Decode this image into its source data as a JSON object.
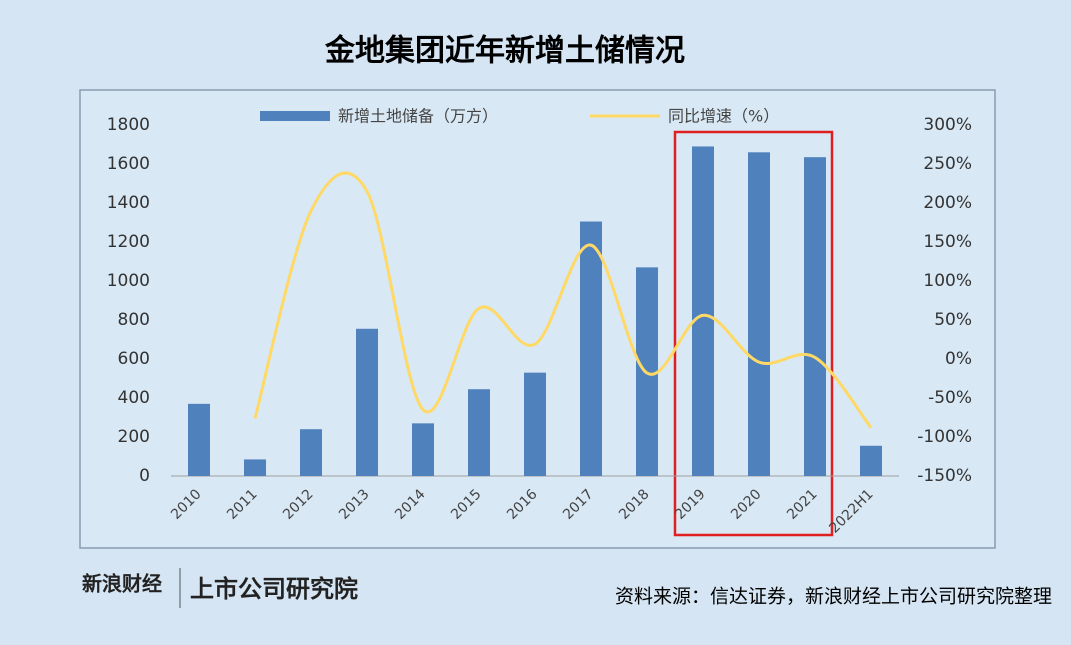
{
  "chart_data": {
    "type": "bar_line",
    "title": "金地集团近年新增土储情况",
    "source": "资料来源：信达证券，新浪财经上市公司研究院整理",
    "logo": {
      "brand": "新浪财经",
      "institute": "上市公司研究院"
    },
    "categories": [
      "2010",
      "2011",
      "2012",
      "2013",
      "2014",
      "2015",
      "2016",
      "2017",
      "2018",
      "2019",
      "2020",
      "2021",
      "2022H1"
    ],
    "series": [
      {
        "name": "新增土地储备（万方）",
        "type": "bar",
        "color": "#4f81bd",
        "values": [
          370,
          85,
          240,
          755,
          270,
          445,
          530,
          1305,
          1070,
          1690,
          1660,
          1635,
          155
        ]
      },
      {
        "name": "同比增速（%）",
        "type": "line",
        "axis": "y2",
        "color": "#ffd966",
        "values": [
          null,
          -76,
          190,
          215,
          -65,
          65,
          19,
          146,
          -18,
          56,
          -4,
          2,
          -88
        ]
      }
    ],
    "ylim": [
      0,
      1800
    ],
    "yticks": [
      0,
      200,
      400,
      600,
      800,
      1000,
      1200,
      1400,
      1600,
      1800
    ],
    "y2lim": [
      -150,
      300
    ],
    "y2ticks": [
      {
        "value": -150,
        "label": "-150%"
      },
      {
        "value": -100,
        "label": "-100%"
      },
      {
        "value": -50,
        "label": "-50%"
      },
      {
        "value": 0,
        "label": "0%"
      },
      {
        "value": 50,
        "label": "50%"
      },
      {
        "value": 100,
        "label": "100%"
      },
      {
        "value": 150,
        "label": "150%"
      },
      {
        "value": 200,
        "label": "200%"
      },
      {
        "value": 250,
        "label": "250%"
      },
      {
        "value": 300,
        "label": "300%"
      }
    ],
    "legend": "top"
  }
}
